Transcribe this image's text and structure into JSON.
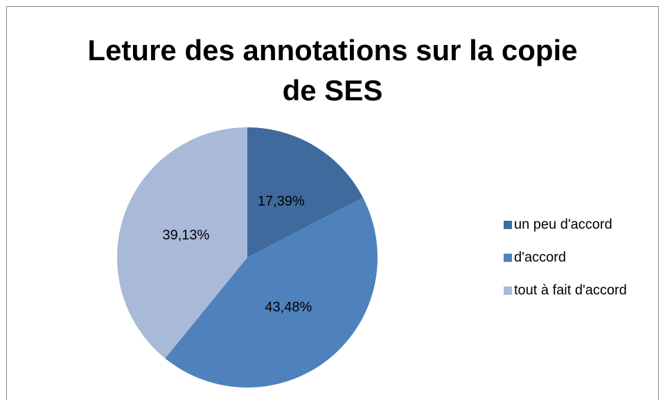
{
  "chart_data": {
    "type": "pie",
    "title": "Leture des annotations sur la copie de SES",
    "categories": [
      "un peu d'accord",
      "d'accord",
      "tout à fait d'accord"
    ],
    "values": [
      17.39,
      43.48,
      39.13
    ],
    "value_labels": [
      "17,39%",
      "43,48%",
      "39,13%"
    ],
    "colors": [
      "#3f6a9d",
      "#4f81bd",
      "#a9b9d8"
    ],
    "legend": "right"
  }
}
